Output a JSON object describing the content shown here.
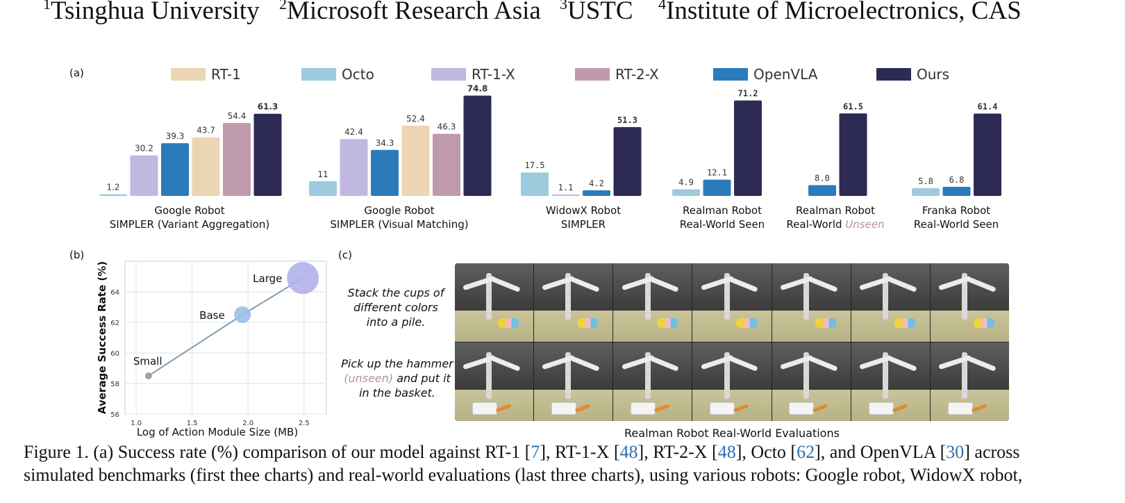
{
  "affiliations": [
    {
      "num": "1",
      "name": "Tsinghua University"
    },
    {
      "num": "2",
      "name": "Microsoft Research Asia"
    },
    {
      "num": "3",
      "name": "USTC"
    },
    {
      "num": "4",
      "name": "Institute of Microelectronics, CAS"
    }
  ],
  "panel_labels": {
    "a": "(a)",
    "b": "(b)",
    "c": "(c)"
  },
  "legend": [
    {
      "name": "RT-1",
      "color": "#ebd5b3"
    },
    {
      "name": "Octo",
      "color": "#9dcadc"
    },
    {
      "name": "RT-1-X",
      "color": "#c0b8e0"
    },
    {
      "name": "RT-2-X",
      "color": "#bf9aac"
    },
    {
      "name": "OpenVLA",
      "color": "#2b7bba"
    },
    {
      "name": "Ours",
      "color": "#2d2b54"
    }
  ],
  "chart_data": [
    {
      "type": "bar",
      "panel": "(a)",
      "groups": [
        {
          "label_lines": [
            "Google Robot",
            "SIMPLER (Variant Aggregation)"
          ],
          "bars": [
            {
              "model": "Octo",
              "value": 1.2
            },
            {
              "model": "RT-1-X",
              "value": 30.2
            },
            {
              "model": "OpenVLA",
              "value": 39.3
            },
            {
              "model": "RT-1",
              "value": 43.7
            },
            {
              "model": "RT-2-X",
              "value": 54.4
            },
            {
              "model": "Ours",
              "value": 61.3
            }
          ]
        },
        {
          "label_lines": [
            "Google Robot",
            "SIMPLER (Visual Matching)"
          ],
          "bars": [
            {
              "model": "Octo",
              "value": 11
            },
            {
              "model": "RT-1-X",
              "value": 42.4
            },
            {
              "model": "OpenVLA",
              "value": 34.3
            },
            {
              "model": "RT-1",
              "value": 52.4
            },
            {
              "model": "RT-2-X",
              "value": 46.3
            },
            {
              "model": "Ours",
              "value": 74.8
            }
          ]
        },
        {
          "label_lines": [
            "WidowX Robot",
            "SIMPLER"
          ],
          "bars": [
            {
              "model": "Octo",
              "value": 17.5
            },
            {
              "model": "RT-1-X",
              "value": 1.1
            },
            {
              "model": "OpenVLA",
              "value": 4.2
            },
            {
              "model": "Ours",
              "value": 51.3
            }
          ]
        },
        {
          "label_lines": [
            "Realman Robot",
            "Real-World Seen"
          ],
          "bars": [
            {
              "model": "Octo",
              "value": 4.9
            },
            {
              "model": "OpenVLA",
              "value": 12.1
            },
            {
              "model": "Ours",
              "value": 71.2
            }
          ]
        },
        {
          "label_lines": [
            "Realman Robot",
            "Real-World "
          ],
          "label_emph": "Unseen",
          "bars": [
            {
              "model": "OpenVLA",
              "value": 8.0
            },
            {
              "model": "Ours",
              "value": 61.5
            }
          ]
        },
        {
          "label_lines": [
            "Franka Robot",
            "Real-World Seen"
          ],
          "bars": [
            {
              "model": "Octo",
              "value": 5.8
            },
            {
              "model": "OpenVLA",
              "value": 6.8
            },
            {
              "model": "Ours",
              "value": 61.4
            }
          ]
        }
      ],
      "value_labels": {
        "0": [
          "1.2",
          "30.2",
          "39.3",
          "43.7",
          "54.4",
          "61.3"
        ],
        "1": [
          "11",
          "42.4",
          "34.3",
          "52.4",
          "46.3",
          "74.8"
        ],
        "2": [
          "17.5",
          "1.1",
          "4.2",
          "51.3"
        ],
        "3": [
          "4.9",
          "12.1",
          "71.2"
        ],
        "4": [
          "8.0",
          "61.5"
        ],
        "5": [
          "5.8",
          "6.8",
          "61.4"
        ]
      }
    },
    {
      "type": "scatter",
      "panel": "(b)",
      "xlabel": "Log of Action Module Size (MB)",
      "ylabel": "Average Success Rate (%)",
      "xlim": [
        0.9,
        2.7
      ],
      "ylim": [
        56,
        66
      ],
      "xticks": [
        "1.0",
        "1.5",
        "2.0",
        "2.5"
      ],
      "yticks": [
        "56",
        "58",
        "60",
        "62",
        "64"
      ],
      "grid": true,
      "points": [
        {
          "label": "Small",
          "x": 1.11,
          "y": 58.5,
          "color": "#999999"
        },
        {
          "label": "Base",
          "x": 1.95,
          "y": 62.5,
          "color": "#9dbee8"
        },
        {
          "label": "Large",
          "x": 2.49,
          "y": 64.9,
          "color": "#b3b1ec"
        }
      ]
    }
  ],
  "panel_c": {
    "tasks": [
      {
        "lines": [
          "Stack the cups of",
          "different colors",
          "into a pile."
        ]
      },
      {
        "line1": "Pick up the hammer",
        "unseen": "(unseen)",
        "line2_rest": " and put it",
        "line3": "in the basket."
      }
    ],
    "title": "Realman Robot Real-World Evaluations"
  },
  "caption": {
    "prefix": "Figure 1.  (a) Success rate (%) comparison of our model against RT-1 [",
    "refs": [
      "7",
      "48",
      "48",
      "62",
      "30"
    ],
    "parts": [
      "], RT-1-X [",
      "], RT-2-X [",
      "], Octo [",
      "], and OpenVLA [",
      "] across"
    ],
    "line2": "simulated benchmarks (first thee charts) and real-world evaluations (last three charts), using various robots: Google robot, WidowX robot,"
  }
}
